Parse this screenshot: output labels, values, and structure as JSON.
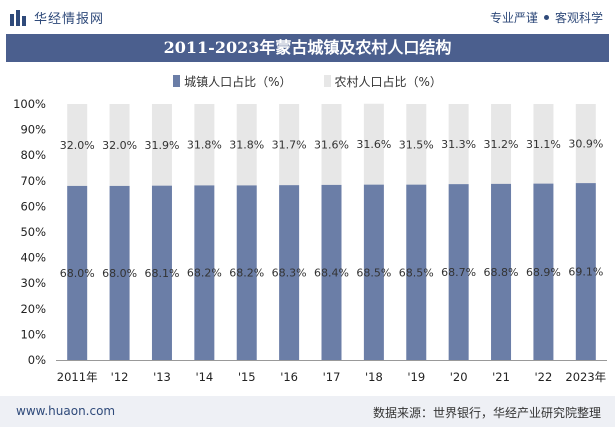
{
  "header": {
    "brand": "华经情报网",
    "slogan": [
      "专业严谨",
      "客观科学"
    ]
  },
  "title": "2011-2023年蒙古城镇及农村人口结构",
  "legend": {
    "urban": "城镇人口占比（%）",
    "rural": "农村人口占比（%）"
  },
  "footer": {
    "url": "www.huaon.com",
    "source": "数据来源：世界银行，华经产业研究院整理"
  },
  "colors": {
    "urban": "#6b7ea7",
    "rural": "#e7e7e7",
    "title_bg": "#4b5f8e",
    "brand": "#2f4a7a"
  },
  "chart_data": {
    "type": "bar",
    "stacked": true,
    "categories": [
      "2011年",
      "'12",
      "'13",
      "'14",
      "'15",
      "'16",
      "'17",
      "'18",
      "'19",
      "'20",
      "'21",
      "'22",
      "2023年"
    ],
    "series": [
      {
        "name": "城镇人口占比（%）",
        "values": [
          68.0,
          68.0,
          68.1,
          68.2,
          68.2,
          68.3,
          68.4,
          68.5,
          68.5,
          68.7,
          68.8,
          68.9,
          69.1
        ],
        "labels": [
          "68.0%",
          "68.0%",
          "68.1%",
          "68.2%",
          "68.2%",
          "68.3%",
          "68.4%",
          "68.5%",
          "68.5%",
          "68.7%",
          "68.8%",
          "68.9%",
          "69.1%"
        ]
      },
      {
        "name": "农村人口占比（%）",
        "values": [
          32.0,
          32.0,
          31.9,
          31.8,
          31.8,
          31.7,
          31.6,
          31.6,
          31.5,
          31.3,
          31.2,
          31.1,
          30.9
        ],
        "labels": [
          "32.0%",
          "32.0%",
          "31.9%",
          "31.8%",
          "31.8%",
          "31.7%",
          "31.6%",
          "31.6%",
          "31.5%",
          "31.3%",
          "31.2%",
          "31.1%",
          "30.9%"
        ]
      }
    ],
    "yticks": [
      "0%",
      "10%",
      "20%",
      "30%",
      "40%",
      "50%",
      "60%",
      "70%",
      "80%",
      "90%",
      "100%"
    ],
    "ylim": [
      0,
      100
    ],
    "legend_position": "top"
  }
}
